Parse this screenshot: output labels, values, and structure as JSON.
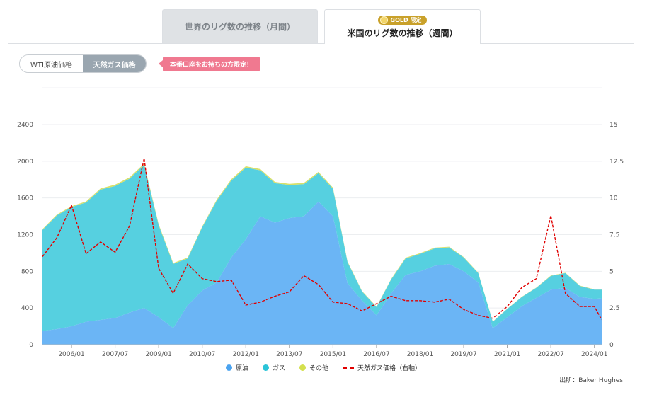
{
  "tabs": [
    {
      "label": "世界のリグ数の推移（月間）",
      "active": false
    },
    {
      "label": "米国のリグ数の推移（週間）",
      "active": true,
      "badge": "GOLD 限定"
    }
  ],
  "toggle": {
    "option1": "WTI原油価格",
    "option2": "天然ガス価格",
    "selected": "天然ガス価格"
  },
  "promo_label": "本番口座をお持ちの方限定！",
  "source": "出所：Baker Hughes",
  "colors": {
    "oil": "#6bb5f5",
    "gas": "#56d0e0",
    "other": "#d8e06a",
    "price": "#e00000"
  },
  "chart_data": {
    "type": "area",
    "x_start": "2005-01",
    "x_end": "2024-04",
    "xticks": [
      "2006/01",
      "2007/07",
      "2009/01",
      "2010/07",
      "2012/01",
      "2013/07",
      "2015/01",
      "2016/07",
      "2018/01",
      "2019/07",
      "2021/01",
      "2022/07",
      "2024/01"
    ],
    "y_left": {
      "min": 0,
      "max": 2400,
      "ticks": [
        "0",
        "400",
        "800",
        "1200",
        "1600",
        "2000",
        "2400"
      ]
    },
    "y_right": {
      "min": 0,
      "max": 15,
      "ticks": [
        "0",
        "2.5",
        "5",
        "7.5",
        "10",
        "12.5",
        "15"
      ]
    },
    "x": [
      "2005-01",
      "2005-07",
      "2006-01",
      "2006-07",
      "2007-01",
      "2007-07",
      "2008-01",
      "2008-07",
      "2009-01",
      "2009-07",
      "2010-01",
      "2010-07",
      "2011-01",
      "2011-07",
      "2012-01",
      "2012-07",
      "2013-01",
      "2013-07",
      "2014-01",
      "2014-07",
      "2015-01",
      "2015-07",
      "2016-01",
      "2016-07",
      "2017-01",
      "2017-07",
      "2018-01",
      "2018-07",
      "2019-01",
      "2019-07",
      "2020-01",
      "2020-07",
      "2021-01",
      "2021-07",
      "2022-01",
      "2022-07",
      "2023-01",
      "2023-07",
      "2024-01",
      "2024-04"
    ],
    "series": [
      {
        "name": "原油",
        "type": "area",
        "values": [
          150,
          170,
          200,
          250,
          270,
          290,
          350,
          400,
          300,
          180,
          430,
          590,
          680,
          950,
          1150,
          1400,
          1330,
          1380,
          1400,
          1560,
          1400,
          670,
          480,
          320,
          560,
          760,
          800,
          860,
          880,
          800,
          680,
          180,
          300,
          420,
          510,
          600,
          620,
          520,
          500,
          505
        ]
      },
      {
        "name": "ガス",
        "type": "area",
        "values": [
          1100,
          1240,
          1300,
          1300,
          1420,
          1440,
          1460,
          1560,
          1000,
          700,
          510,
          690,
          890,
          840,
          780,
          500,
          430,
          360,
          350,
          310,
          300,
          230,
          100,
          90,
          150,
          180,
          190,
          190,
          180,
          150,
          100,
          70,
          90,
          100,
          110,
          150,
          160,
          120,
          100,
          95
        ]
      },
      {
        "name": "その他",
        "type": "area",
        "values": [
          10,
          10,
          10,
          12,
          14,
          15,
          15,
          15,
          14,
          10,
          10,
          10,
          12,
          14,
          16,
          15,
          15,
          14,
          14,
          14,
          12,
          8,
          6,
          5,
          6,
          8,
          8,
          8,
          8,
          6,
          5,
          3,
          3,
          3,
          3,
          4,
          4,
          4,
          4,
          4
        ]
      },
      {
        "name": "天然ガス価格（右軸）",
        "type": "line",
        "values": [
          6.0,
          7.3,
          9.5,
          6.2,
          7.0,
          6.3,
          8.1,
          12.7,
          5.2,
          3.5,
          5.5,
          4.5,
          4.3,
          4.4,
          2.7,
          2.9,
          3.3,
          3.6,
          4.7,
          4.1,
          2.9,
          2.8,
          2.3,
          2.8,
          3.3,
          3.0,
          3.0,
          2.9,
          3.1,
          2.4,
          2.0,
          1.8,
          2.6,
          3.9,
          4.5,
          8.8,
          3.5,
          2.6,
          2.6,
          1.7
        ]
      }
    ]
  },
  "legend": [
    {
      "label": "原油",
      "kind": "dot",
      "color": "#4aa3f0"
    },
    {
      "label": "ガス",
      "kind": "dot",
      "color": "#2bc4d8"
    },
    {
      "label": "その他",
      "kind": "dot",
      "color": "#d4e04e"
    },
    {
      "label": "天然ガス価格（右軸）",
      "kind": "dash",
      "color": "#e00000"
    }
  ]
}
